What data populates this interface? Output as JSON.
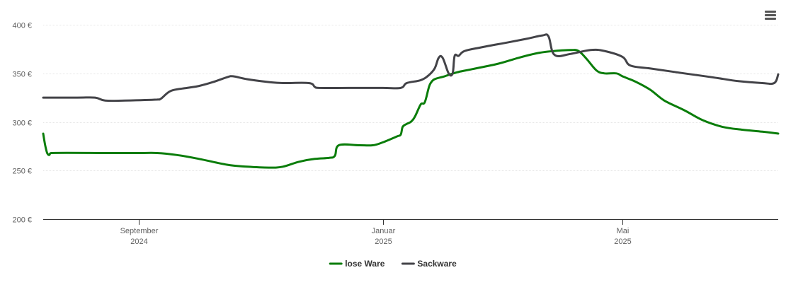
{
  "chart_data": {
    "type": "line",
    "title": "",
    "xlabel": "",
    "ylabel": "",
    "ylim": [
      200,
      400
    ],
    "yticks": [
      {
        "value": 200,
        "label": "200 €"
      },
      {
        "value": 250,
        "label": "250 €"
      },
      {
        "value": 300,
        "label": "300 €"
      },
      {
        "value": 350,
        "label": "350 €"
      },
      {
        "value": 400,
        "label": "400 €"
      }
    ],
    "xlim": [
      "2024-07-15",
      "2025-07-18"
    ],
    "xticks": [
      {
        "date": "2024-09-01",
        "month": "September",
        "year": "2024"
      },
      {
        "date": "2025-01-01",
        "month": "Januar",
        "year": "2025"
      },
      {
        "date": "2025-05-01",
        "month": "Mai",
        "year": "2025"
      }
    ],
    "grid": true,
    "legend_position": "bottom-center",
    "series": [
      {
        "name": "lose Ware",
        "color": "#0a7d0a",
        "points": [
          [
            "2024-07-15",
            288
          ],
          [
            "2024-07-16",
            276
          ],
          [
            "2024-07-17",
            268
          ],
          [
            "2024-07-18",
            266
          ],
          [
            "2024-07-19",
            268
          ],
          [
            "2024-08-15",
            268
          ],
          [
            "2024-09-01",
            268
          ],
          [
            "2024-09-10",
            268
          ],
          [
            "2024-09-20",
            266
          ],
          [
            "2024-10-01",
            262
          ],
          [
            "2024-10-15",
            256
          ],
          [
            "2024-10-25",
            254
          ],
          [
            "2024-11-05",
            253
          ],
          [
            "2024-11-12",
            254
          ],
          [
            "2024-11-20",
            259
          ],
          [
            "2024-11-28",
            262
          ],
          [
            "2024-12-05",
            263
          ],
          [
            "2024-12-08",
            265
          ],
          [
            "2024-12-10",
            276
          ],
          [
            "2024-12-20",
            276
          ],
          [
            "2024-12-27",
            276
          ],
          [
            "2025-01-01",
            279
          ],
          [
            "2025-01-08",
            285
          ],
          [
            "2025-01-10",
            287
          ],
          [
            "2025-01-11",
            295
          ],
          [
            "2025-01-13",
            298
          ],
          [
            "2025-01-15",
            300
          ],
          [
            "2025-01-17",
            305
          ],
          [
            "2025-01-20",
            318
          ],
          [
            "2025-01-22",
            320
          ],
          [
            "2025-01-24",
            335
          ],
          [
            "2025-01-25",
            340
          ],
          [
            "2025-01-27",
            344
          ],
          [
            "2025-02-01",
            347
          ],
          [
            "2025-02-07",
            351
          ],
          [
            "2025-02-14",
            354
          ],
          [
            "2025-02-28",
            360
          ],
          [
            "2025-03-10",
            366
          ],
          [
            "2025-03-20",
            371
          ],
          [
            "2025-03-28",
            373
          ],
          [
            "2025-04-05",
            374
          ],
          [
            "2025-04-09",
            373
          ],
          [
            "2025-04-13",
            365
          ],
          [
            "2025-04-18",
            353
          ],
          [
            "2025-04-22",
            350
          ],
          [
            "2025-04-28",
            350
          ],
          [
            "2025-05-01",
            347
          ],
          [
            "2025-05-08",
            341
          ],
          [
            "2025-05-15",
            333
          ],
          [
            "2025-05-22",
            322
          ],
          [
            "2025-06-01",
            312
          ],
          [
            "2025-06-10",
            302
          ],
          [
            "2025-06-20",
            295
          ],
          [
            "2025-06-30",
            292
          ],
          [
            "2025-07-10",
            290
          ],
          [
            "2025-07-18",
            288
          ]
        ]
      },
      {
        "name": "Sackware",
        "color": "#434348",
        "points": [
          [
            "2024-07-15",
            325
          ],
          [
            "2024-08-01",
            325
          ],
          [
            "2024-08-10",
            325
          ],
          [
            "2024-08-15",
            322
          ],
          [
            "2024-08-25",
            322
          ],
          [
            "2024-09-10",
            323
          ],
          [
            "2024-09-12",
            324
          ],
          [
            "2024-09-17",
            332
          ],
          [
            "2024-09-25",
            335
          ],
          [
            "2024-10-01",
            337
          ],
          [
            "2024-10-08",
            341
          ],
          [
            "2024-10-15",
            346
          ],
          [
            "2024-10-18",
            347
          ],
          [
            "2024-10-25",
            344
          ],
          [
            "2024-11-05",
            341
          ],
          [
            "2024-11-12",
            340
          ],
          [
            "2024-11-25",
            340
          ],
          [
            "2024-11-28",
            336
          ],
          [
            "2024-11-30",
            335
          ],
          [
            "2024-12-15",
            335
          ],
          [
            "2025-01-01",
            335
          ],
          [
            "2025-01-10",
            335
          ],
          [
            "2025-01-13",
            340
          ],
          [
            "2025-01-20",
            343
          ],
          [
            "2025-01-24",
            348
          ],
          [
            "2025-01-27",
            355
          ],
          [
            "2025-01-29",
            366
          ],
          [
            "2025-01-31",
            366
          ],
          [
            "2025-02-03",
            350
          ],
          [
            "2025-02-05",
            350
          ],
          [
            "2025-02-06",
            368
          ],
          [
            "2025-02-08",
            368
          ],
          [
            "2025-02-11",
            373
          ],
          [
            "2025-02-20",
            377
          ],
          [
            "2025-03-05",
            382
          ],
          [
            "2025-03-15",
            386
          ],
          [
            "2025-03-22",
            389
          ],
          [
            "2025-03-25",
            388
          ],
          [
            "2025-03-28",
            369
          ],
          [
            "2025-04-05",
            370
          ],
          [
            "2025-04-15",
            374
          ],
          [
            "2025-04-22",
            373
          ],
          [
            "2025-05-01",
            367
          ],
          [
            "2025-05-05",
            358
          ],
          [
            "2025-05-15",
            355
          ],
          [
            "2025-06-01",
            350
          ],
          [
            "2025-06-15",
            346
          ],
          [
            "2025-06-28",
            342
          ],
          [
            "2025-07-10",
            340
          ],
          [
            "2025-07-16",
            340
          ],
          [
            "2025-07-18",
            349
          ]
        ]
      }
    ]
  },
  "toolbar": {
    "menu_icon": "hamburger-menu-icon"
  }
}
